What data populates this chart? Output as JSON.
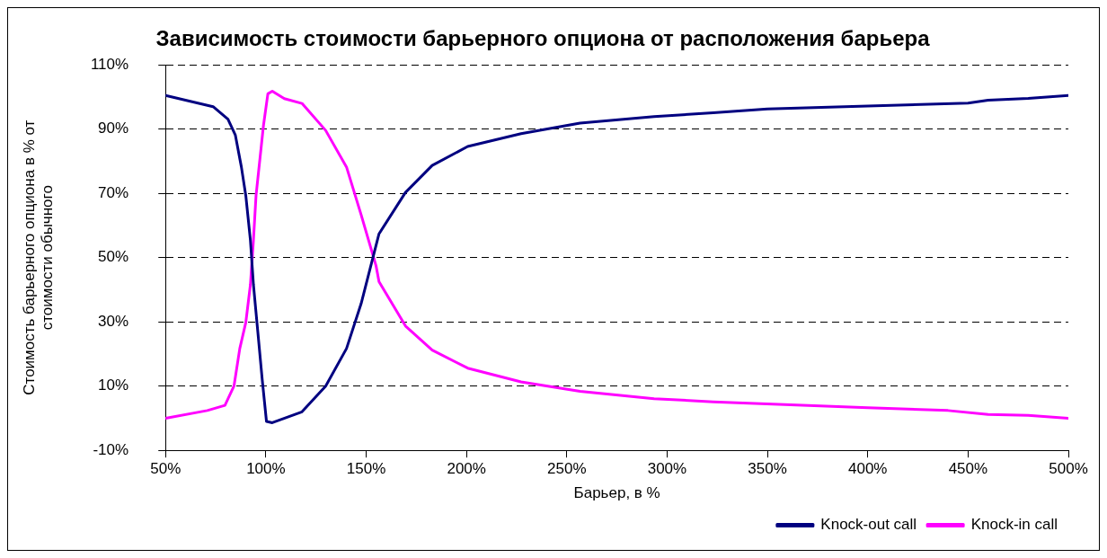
{
  "chart_data": {
    "type": "line",
    "title": "Зависимость стоимости барьерного опциона от расположения барьера",
    "xlabel": "Барьер, в %",
    "ylabel": "Стоимость барьерного опциона в % от стоимости обычного",
    "xlim": [
      50,
      500
    ],
    "xticks": [
      {
        "value": 50,
        "label": "50%"
      },
      {
        "value": 100,
        "label": "100%"
      },
      {
        "value": 150,
        "label": "150%"
      },
      {
        "value": 200,
        "label": "200%"
      },
      {
        "value": 250,
        "label": "250%"
      },
      {
        "value": 300,
        "label": "300%"
      },
      {
        "value": 350,
        "label": "350%"
      },
      {
        "value": 400,
        "label": "400%"
      },
      {
        "value": 450,
        "label": "450%"
      },
      {
        "value": 500,
        "label": "500%"
      }
    ],
    "ylim": [
      -10,
      110
    ],
    "yticks": [
      {
        "value": -10,
        "label": "-10%"
      },
      {
        "value": 10,
        "label": "10%"
      },
      {
        "value": 30,
        "label": "30%"
      },
      {
        "value": 50,
        "label": "50%"
      },
      {
        "value": 70,
        "label": "70%"
      },
      {
        "value": 90,
        "label": "90%"
      },
      {
        "value": 110,
        "label": "110%"
      }
    ],
    "grid": "y",
    "legend": "bottom right",
    "marker": "none",
    "line_style": "solid",
    "series": [
      {
        "name": "Knock-out call",
        "color": "#000080",
        "x": [
          50,
          73.7,
          81.1,
          84.8,
          87.8,
          90,
          92.3,
          93.8,
          96,
          98.2,
          100.3,
          103.2,
          118,
          129.8,
          140.2,
          147.5,
          156.4,
          169.6,
          182.9,
          200.6,
          227.2,
          256.6,
          293.5,
          323,
          350,
          400,
          450,
          460,
          480,
          500
        ],
        "values": [
          100.5,
          97,
          93.1,
          88.1,
          78.2,
          69.3,
          55.4,
          41.6,
          26.8,
          11.9,
          -1,
          -1.4,
          2,
          10,
          21.7,
          35.7,
          57.4,
          70.3,
          78.7,
          84.6,
          88.6,
          91.9,
          93.9,
          95.1,
          96.3,
          97.2,
          98.1,
          99,
          99.6,
          100.5
        ]
      },
      {
        "name": "Knock-in call",
        "color": "#ff00ff",
        "x": [
          50,
          70.8,
          79.6,
          84.1,
          87,
          90,
          92.3,
          93.8,
          95.1,
          98.8,
          101,
          103.2,
          109.2,
          118,
          129.8,
          140.2,
          147.5,
          154.9,
          156.4,
          169.6,
          182.9,
          200.6,
          227.2,
          256.6,
          293.5,
          323,
          400,
          440,
          460,
          480,
          500
        ],
        "values": [
          0,
          2.4,
          4,
          10,
          21.7,
          29.8,
          41.6,
          55.4,
          69.3,
          91.1,
          101,
          101.8,
          99.5,
          98,
          89.6,
          78.2,
          63.3,
          47.5,
          42.5,
          28.7,
          21.2,
          15.6,
          11.3,
          8.4,
          6.1,
          5.1,
          3.3,
          2.4,
          1.2,
          0.9,
          0
        ]
      }
    ]
  }
}
